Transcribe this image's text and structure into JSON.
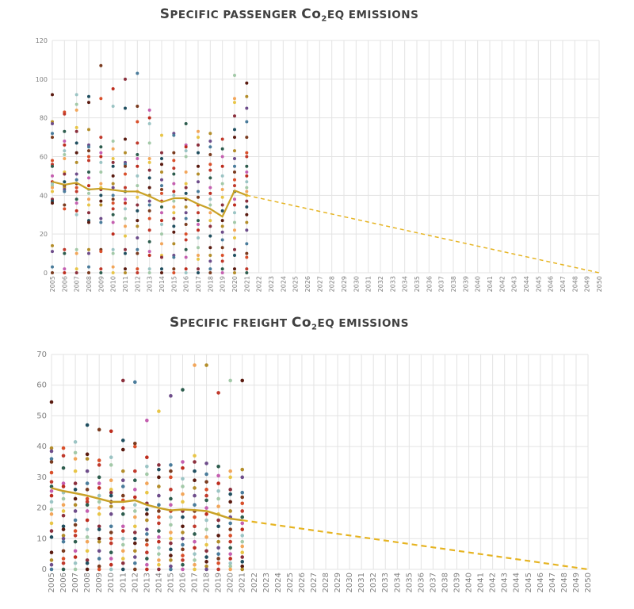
{
  "charts": [
    {
      "title_lead": "S",
      "title_rest": "pecific passenger ",
      "title_lead2": "C",
      "title_tail": "o",
      "title_sub": "2",
      "title_end": "eq emissions",
      "title_text": "Specific passenger Co2eq emissions"
    },
    {
      "title_lead": "S",
      "title_rest": "pecific freight ",
      "title_lead2": "C",
      "title_tail": "o",
      "title_sub": "2",
      "title_end": "eq emissions",
      "title_text": "Specific freight Co2eq emissions"
    }
  ],
  "chart_data": [
    {
      "type": "scatter",
      "title": "Specific passenger Co2eq emissions",
      "xlabel": "",
      "ylabel": "",
      "x_categories": [
        "2005",
        "2006",
        "2007",
        "2008",
        "2009",
        "2010",
        "2011",
        "2012",
        "2013",
        "2014",
        "2015",
        "2016",
        "2017",
        "2018",
        "2019",
        "2020",
        "2021",
        "2022",
        "2023",
        "2024",
        "2025",
        "2026",
        "2027",
        "2028",
        "2029",
        "2030",
        "2031",
        "2032",
        "2033",
        "2034",
        "2035",
        "2036",
        "2037",
        "2038",
        "2039",
        "2040",
        "2041",
        "2042",
        "2043",
        "2044",
        "2045",
        "2046",
        "2047",
        "2048",
        "2049",
        "2050"
      ],
      "ylim": [
        0,
        120
      ],
      "yticks": [
        0,
        20,
        40,
        60,
        80,
        100,
        120
      ],
      "grid": true,
      "legend": "none",
      "colors": [
        "#5a1a0f",
        "#2e5d4e",
        "#8b2f3c",
        "#d94f2a",
        "#f2a65a",
        "#4a7c9b",
        "#9bc4c4",
        "#b38d2a",
        "#c45fb0",
        "#1f4e5f",
        "#c0392b",
        "#e8c547",
        "#7a3b1f",
        "#a3c9a8",
        "#6d4c8a",
        "#bd2d1e"
      ],
      "series": [
        {
          "role": "points",
          "x": "2005",
          "values": [
            92,
            78,
            77,
            72,
            70,
            58,
            56,
            55,
            50,
            47,
            46,
            45,
            44,
            42,
            38,
            37,
            36,
            14,
            11,
            3,
            0
          ]
        },
        {
          "role": "points",
          "x": "2006",
          "values": [
            83,
            82,
            73,
            68,
            66,
            63,
            61,
            59,
            52,
            51,
            47,
            45,
            44,
            43,
            42,
            35,
            33,
            12,
            10,
            2,
            0
          ]
        },
        {
          "role": "points",
          "x": "2007",
          "values": [
            92,
            87,
            84,
            75,
            73,
            67,
            62,
            57,
            51,
            48,
            46,
            44,
            42,
            38,
            36,
            32,
            30,
            12,
            10,
            2,
            0
          ]
        },
        {
          "role": "points",
          "x": "2008",
          "values": [
            91,
            88,
            74,
            66,
            65,
            63,
            60,
            58,
            52,
            49,
            45,
            43,
            41,
            38,
            35,
            31,
            27,
            26,
            12,
            10,
            3,
            0
          ]
        },
        {
          "role": "points",
          "x": "2009",
          "values": [
            107,
            90,
            70,
            65,
            62,
            60,
            57,
            52,
            46,
            44,
            43,
            40,
            37,
            35,
            28,
            26,
            12,
            11,
            2,
            0
          ]
        },
        {
          "role": "points",
          "x": "2010",
          "values": [
            95,
            86,
            68,
            64,
            59,
            57,
            55,
            50,
            46,
            44,
            40,
            38,
            36,
            33,
            30,
            26,
            20,
            12,
            10,
            3,
            0
          ]
        },
        {
          "role": "points",
          "x": "2011",
          "values": [
            100,
            85,
            69,
            62,
            57,
            56,
            55,
            51,
            44,
            42,
            38,
            36,
            33,
            28,
            24,
            19,
            12,
            10,
            2,
            0
          ]
        },
        {
          "role": "points",
          "x": "2012",
          "values": [
            103,
            86,
            78,
            67,
            61,
            59,
            55,
            50,
            45,
            42,
            39,
            35,
            32,
            27,
            24,
            18,
            12,
            10,
            2,
            0
          ]
        },
        {
          "role": "points",
          "x": "2013",
          "values": [
            84,
            80,
            77,
            67,
            59,
            57,
            53,
            49,
            44,
            40,
            37,
            35,
            32,
            28,
            22,
            16,
            11,
            9,
            2,
            0
          ]
        },
        {
          "role": "points",
          "x": "2014",
          "values": [
            71,
            62,
            59,
            56,
            52,
            48,
            45,
            43,
            41,
            37,
            34,
            31,
            27,
            25,
            20,
            15,
            9,
            8,
            2,
            0
          ]
        },
        {
          "role": "points",
          "x": "2015",
          "values": [
            72,
            71,
            62,
            58,
            54,
            51,
            46,
            42,
            40,
            37,
            34,
            31,
            28,
            24,
            21,
            15,
            9,
            8,
            2,
            0
          ]
        },
        {
          "role": "points",
          "x": "2016",
          "values": [
            77,
            66,
            65,
            63,
            60,
            52,
            46,
            44,
            41,
            38,
            34,
            31,
            28,
            25,
            20,
            17,
            12,
            8,
            2,
            0
          ]
        },
        {
          "role": "points",
          "x": "2017",
          "values": [
            73,
            70,
            66,
            62,
            55,
            51,
            47,
            42,
            39,
            35,
            31,
            27,
            25,
            22,
            18,
            13,
            9,
            7,
            2,
            0
          ]
        },
        {
          "role": "points",
          "x": "2018",
          "values": [
            72,
            68,
            65,
            61,
            56,
            53,
            49,
            44,
            41,
            38,
            35,
            31,
            27,
            24,
            19,
            13,
            9,
            6,
            2,
            0
          ]
        },
        {
          "role": "points",
          "x": "2019",
          "values": [
            69,
            64,
            60,
            55,
            50,
            46,
            43,
            39,
            35,
            32,
            27,
            24,
            21,
            17,
            13,
            9,
            6,
            2,
            0
          ]
        },
        {
          "role": "points",
          "x": "2020",
          "values": [
            102,
            90,
            88,
            81,
            74,
            70,
            63,
            59,
            55,
            52,
            48,
            45,
            42,
            38,
            35,
            31,
            26,
            22,
            18,
            12,
            9,
            2,
            0
          ]
        },
        {
          "role": "points",
          "x": "2021",
          "values": [
            98,
            91,
            85,
            78,
            70,
            62,
            60,
            55,
            52,
            50,
            47,
            44,
            42,
            40,
            37,
            34,
            30,
            26,
            22,
            15,
            10,
            8,
            2,
            0
          ]
        },
        {
          "role": "average",
          "x": [
            "2005",
            "2006",
            "2007",
            "2008",
            "2009",
            "2010",
            "2011",
            "2012",
            "2013",
            "2014",
            "2015",
            "2016",
            "2017",
            "2018",
            "2019",
            "2020",
            "2021"
          ],
          "values": [
            47,
            45.5,
            46.5,
            43,
            43.5,
            42.8,
            42,
            42,
            39.5,
            36.5,
            38.5,
            38.5,
            35.5,
            33,
            29,
            42.5,
            40
          ],
          "color": "#c9a227"
        },
        {
          "role": "target",
          "x": [
            "2021",
            "2050"
          ],
          "values": [
            40,
            0
          ],
          "color": "#e6b422"
        }
      ]
    },
    {
      "type": "scatter",
      "title": "Specific freight Co2eq emissions",
      "xlabel": "",
      "ylabel": "",
      "x_categories": [
        "2005",
        "2006",
        "2007",
        "2008",
        "2009",
        "2010",
        "2011",
        "2012",
        "2013",
        "2014",
        "2015",
        "2016",
        "2017",
        "2018",
        "2019",
        "2020",
        "2021",
        "2022",
        "2023",
        "2024",
        "2025",
        "2026",
        "2027",
        "2028",
        "2029",
        "2030",
        "2031",
        "2032",
        "2033",
        "2034",
        "2035",
        "2036",
        "2037",
        "2038",
        "2039",
        "2040",
        "2041",
        "2042",
        "2043",
        "2044",
        "2045",
        "2046",
        "2047",
        "2048",
        "2049",
        "2050"
      ],
      "ylim": [
        0,
        70
      ],
      "yticks": [
        0,
        10,
        20,
        30,
        40,
        50,
        60,
        70
      ],
      "grid": true,
      "legend": "none",
      "colors": [
        "#5a1a0f",
        "#2e5d4e",
        "#8b2f3c",
        "#d94f2a",
        "#f2a65a",
        "#4a7c9b",
        "#9bc4c4",
        "#b38d2a",
        "#c45fb0",
        "#1f4e5f",
        "#c0392b",
        "#e8c547",
        "#7a3b1f",
        "#a3c9a8",
        "#6d4c8a",
        "#bd2d1e"
      ],
      "series": [
        {
          "role": "points",
          "x": "2005",
          "values": [
            54.5,
            39.5,
            38.5,
            36,
            35,
            31.5,
            28.5,
            27,
            25.5,
            24,
            22,
            19.5,
            18,
            15,
            12.5,
            10.5,
            5.5,
            3,
            1.5,
            0
          ]
        },
        {
          "role": "points",
          "x": "2006",
          "values": [
            39.5,
            37,
            33,
            28,
            27,
            25,
            23,
            21,
            19,
            17.5,
            14,
            13,
            11,
            10,
            9,
            6,
            3.5,
            2,
            0
          ]
        },
        {
          "role": "points",
          "x": "2007",
          "values": [
            41.5,
            38,
            36,
            32,
            28,
            26,
            23,
            21,
            19,
            16,
            14.5,
            12.5,
            11,
            9,
            6,
            4,
            2,
            0
          ]
        },
        {
          "role": "points",
          "x": "2008",
          "values": [
            47,
            37.5,
            36,
            32,
            28,
            26,
            23,
            22,
            21,
            19,
            16,
            13,
            10.5,
            9,
            6,
            3,
            2,
            0
          ]
        },
        {
          "role": "points",
          "x": "2009",
          "values": [
            45.5,
            35.5,
            34,
            30,
            28,
            26.5,
            24,
            22,
            20,
            18,
            14,
            13,
            10,
            9,
            6,
            3.5,
            1,
            0
          ]
        },
        {
          "role": "points",
          "x": "2010",
          "values": [
            45,
            36.5,
            34,
            29,
            26,
            25,
            24,
            22,
            20.5,
            18,
            14,
            12,
            10,
            8.5,
            5.5,
            3.5,
            1.5,
            0
          ]
        },
        {
          "role": "points",
          "x": "2011",
          "values": [
            61.5,
            42,
            39,
            32,
            29,
            27,
            24,
            22.5,
            20,
            18,
            14,
            12.5,
            10,
            8,
            6,
            3.5,
            2,
            0
          ]
        },
        {
          "role": "points",
          "x": "2012",
          "values": [
            61,
            41,
            40,
            32,
            29,
            26,
            23.5,
            21,
            19,
            17,
            14,
            12,
            10,
            8.5,
            6,
            4,
            2,
            0
          ]
        },
        {
          "role": "points",
          "x": "2013",
          "values": [
            48.5,
            36.5,
            33.5,
            31,
            28,
            25,
            21.5,
            19.5,
            18,
            16,
            13,
            11.5,
            9.5,
            8,
            5.5,
            3.5,
            1.5,
            0
          ]
        },
        {
          "role": "points",
          "x": "2014",
          "values": [
            51.5,
            34,
            32.5,
            30,
            27,
            24,
            21,
            19,
            17,
            15,
            12.5,
            10.5,
            9,
            7,
            5,
            3,
            1.5,
            0
          ]
        },
        {
          "role": "points",
          "x": "2015",
          "values": [
            56.5,
            34,
            32,
            30,
            26,
            23,
            21,
            19,
            17,
            14.5,
            12,
            10,
            8.5,
            6.5,
            4.5,
            3,
            1,
            0
          ]
        },
        {
          "role": "points",
          "x": "2016",
          "values": [
            58.5,
            35,
            33,
            29.5,
            27,
            24.5,
            22,
            19,
            17,
            14,
            12,
            10,
            8,
            6.5,
            4.5,
            3,
            1.5,
            0
          ]
        },
        {
          "role": "points",
          "x": "2017",
          "values": [
            66.5,
            37,
            35,
            32,
            29,
            26.5,
            24,
            21,
            19,
            17,
            14,
            11.5,
            9,
            7,
            5,
            3,
            1.5,
            0
          ]
        },
        {
          "role": "points",
          "x": "2018",
          "values": [
            66.5,
            34.5,
            31,
            28.5,
            26,
            24,
            22.5,
            20,
            18,
            16,
            13,
            10.5,
            8,
            6,
            4,
            2.5,
            1,
            0
          ]
        },
        {
          "role": "points",
          "x": "2019",
          "values": [
            57.5,
            33.5,
            30.5,
            28,
            25.5,
            23,
            20.5,
            18,
            16,
            14,
            11,
            9,
            7,
            5,
            3.5,
            2,
            0
          ]
        },
        {
          "role": "points",
          "x": "2020",
          "values": [
            61.5,
            32,
            30,
            26,
            24.5,
            22,
            19,
            17,
            15,
            13,
            11,
            9,
            7,
            5,
            3.5,
            2,
            1,
            0
          ]
        },
        {
          "role": "points",
          "x": "2021",
          "values": [
            61.5,
            32.5,
            30,
            25,
            23.5,
            21.5,
            19,
            17,
            15,
            13,
            11,
            9,
            7.5,
            5.5,
            4,
            2.5,
            1,
            0
          ]
        },
        {
          "role": "average",
          "x": [
            "2005",
            "2006",
            "2007",
            "2008",
            "2009",
            "2010",
            "2011",
            "2012",
            "2013",
            "2014",
            "2015",
            "2016",
            "2017",
            "2018",
            "2019",
            "2020",
            "2021"
          ],
          "values": [
            26.5,
            25.5,
            24.8,
            24,
            23,
            22,
            22,
            22.5,
            21,
            20,
            19.2,
            19.5,
            19.3,
            19,
            17.8,
            16.5,
            16
          ],
          "color": "#c9a227"
        },
        {
          "role": "target",
          "x": [
            "2021",
            "2050"
          ],
          "values": [
            16,
            0
          ],
          "color": "#e6b422"
        }
      ]
    }
  ]
}
